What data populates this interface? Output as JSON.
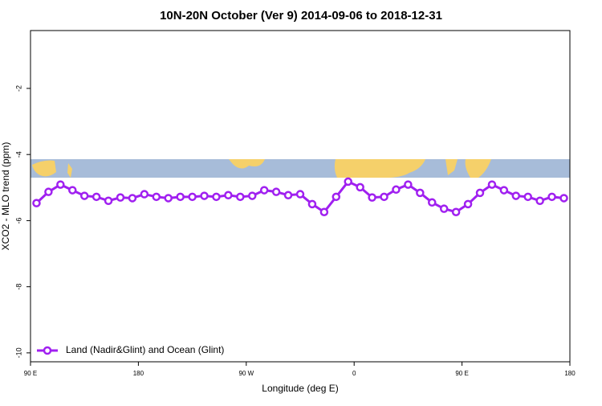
{
  "chart_data": {
    "type": "line",
    "title": "10N-20N October (Ver 9)   2014-09-06 to 2018-12-31",
    "xlabel": "Longitude (deg E)",
    "ylabel": "XCO2 - MLO trend (ppm)",
    "x": [
      95,
      105,
      115,
      125,
      135,
      145,
      155,
      165,
      175,
      185,
      195,
      205,
      215,
      225,
      235,
      245,
      255,
      265,
      275,
      285,
      295,
      305,
      315,
      325,
      335,
      345,
      355,
      365,
      375,
      385,
      395,
      405,
      415,
      425,
      435,
      445,
      455,
      465,
      475,
      485,
      495,
      505,
      515,
      525,
      535
    ],
    "series": [
      {
        "name": "Land (Nadir&Glint) and Ocean (Glint)",
        "color": "#a020f0",
        "values": [
          -5.47,
          -5.13,
          -4.91,
          -5.08,
          -5.25,
          -5.28,
          -5.4,
          -5.3,
          -5.32,
          -5.2,
          -5.28,
          -5.32,
          -5.28,
          -5.28,
          -5.25,
          -5.28,
          -5.23,
          -5.28,
          -5.25,
          -5.08,
          -5.13,
          -5.23,
          -5.2,
          -5.5,
          -5.74,
          -5.28,
          -4.82,
          -4.99,
          -5.3,
          -5.28,
          -5.06,
          -4.91,
          -5.16,
          -5.45,
          -5.64,
          -5.74,
          -5.5,
          -5.16,
          -4.91,
          -5.08,
          -5.25,
          -5.28,
          -5.4,
          -5.28,
          -5.32
        ]
      }
    ],
    "xlim": [
      90,
      540
    ],
    "xticks": [
      {
        "value": 90,
        "label": "90 E"
      },
      {
        "value": 180,
        "label": "180"
      },
      {
        "value": 270,
        "label": "90 W"
      },
      {
        "value": 360,
        "label": "0"
      },
      {
        "value": 450,
        "label": "90 E"
      },
      {
        "value": 540,
        "label": "180"
      }
    ],
    "ylim": [
      -10.27,
      -0.25
    ],
    "yticks": [
      -10,
      -8,
      -6,
      -4,
      -2
    ],
    "legend": "bottom-left"
  }
}
